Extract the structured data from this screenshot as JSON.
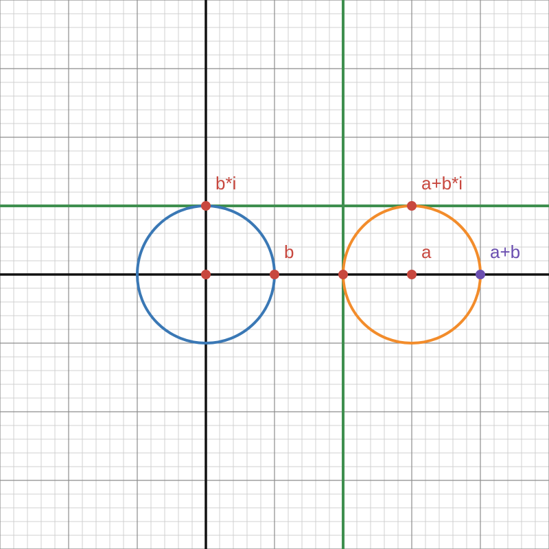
{
  "graph": {
    "x_range": [
      -3,
      5
    ],
    "y_range": [
      -4,
      4
    ],
    "minor_grid_step": 0.2,
    "major_grid_step": 1,
    "grid": true,
    "colors": {
      "background": "#ffffff",
      "minor_grid": "#d0d0d0",
      "major_grid": "#8c8c8c",
      "axis": "#111111",
      "green": "#3f8f4f",
      "blue": "#3a78b5",
      "orange": "#f28c2b",
      "red": "#c8483f",
      "purple": "#6b4fb0"
    }
  },
  "lines": [
    {
      "name": "vertical-line-x-2",
      "orientation": "vertical",
      "value": 2,
      "color": "#3f8f4f"
    },
    {
      "name": "horizontal-line-y-1",
      "orientation": "horizontal",
      "value": 1,
      "color": "#3f8f4f"
    }
  ],
  "circles": [
    {
      "name": "blue-circle",
      "cx": 0,
      "cy": 0,
      "r": 1,
      "color": "#3a78b5"
    },
    {
      "name": "orange-circle",
      "cx": 3,
      "cy": 0,
      "r": 1,
      "color": "#f28c2b"
    }
  ],
  "points": [
    {
      "name": "origin-point",
      "x": 0,
      "y": 0,
      "color": "#c8483f",
      "label": ""
    },
    {
      "name": "point-b",
      "x": 1,
      "y": 0,
      "color": "#c8483f",
      "label": "b",
      "label_anchor": "up-right"
    },
    {
      "name": "point-b-times-i",
      "x": 0,
      "y": 1,
      "color": "#c8483f",
      "label": "b*i",
      "label_anchor": "up-right"
    },
    {
      "name": "point-left-orange",
      "x": 2,
      "y": 0,
      "color": "#c8483f",
      "label": ""
    },
    {
      "name": "point-a",
      "x": 3,
      "y": 0,
      "color": "#c8483f",
      "label": "a",
      "label_anchor": "up-right"
    },
    {
      "name": "point-a-plus-b-times-i",
      "x": 3,
      "y": 1,
      "color": "#c8483f",
      "label": "a+b*i",
      "label_anchor": "up-right"
    },
    {
      "name": "point-a-plus-b",
      "x": 4,
      "y": 0,
      "color": "#6b4fb0",
      "label": "a+b",
      "label_anchor": "up-right"
    }
  ]
}
